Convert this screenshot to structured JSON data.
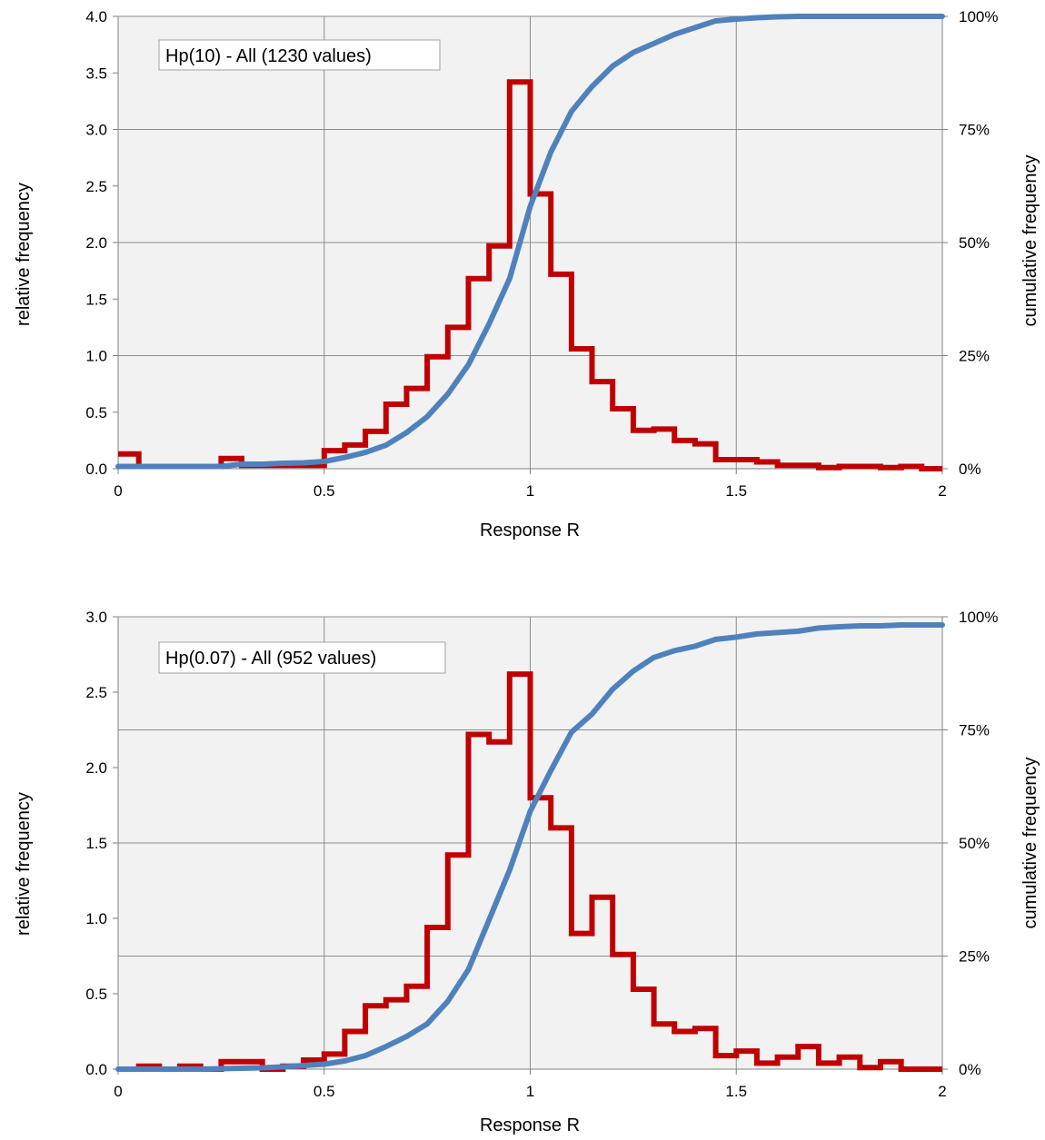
{
  "chart_data": [
    {
      "type": "line",
      "title": "",
      "annotation": "Hp(10) - All (1230 values)",
      "xlabel": "Response R",
      "ylabel": "relative frequency",
      "y2label": "cumulative frequency",
      "xlim": [
        0,
        2
      ],
      "ylim": [
        0,
        4.0
      ],
      "y2lim": [
        0,
        1
      ],
      "xticks": [
        "0",
        "0.5",
        "1",
        "1.5",
        "2"
      ],
      "yticks": [
        "0.0",
        "0.5",
        "1.0",
        "1.5",
        "2.0",
        "2.5",
        "3.0",
        "3.5",
        "4.0"
      ],
      "y2ticks": [
        "0%",
        "25%",
        "50%",
        "75%",
        "100%"
      ],
      "grid": true,
      "series": [
        {
          "type": "step",
          "color": "#c00000",
          "bin_width": 0.05,
          "bin_starts": [
            0,
            0.05,
            0.1,
            0.15,
            0.2,
            0.25,
            0.3,
            0.35,
            0.4,
            0.45,
            0.5,
            0.55,
            0.6,
            0.65,
            0.7,
            0.75,
            0.8,
            0.85,
            0.9,
            0.95,
            1.0,
            1.05,
            1.1,
            1.15,
            1.2,
            1.25,
            1.3,
            1.35,
            1.4,
            1.45,
            1.5,
            1.55,
            1.6,
            1.65,
            1.7,
            1.75,
            1.8,
            1.85,
            1.9,
            1.95
          ],
          "values": [
            0.13,
            0.02,
            0.02,
            0.02,
            0.02,
            0.09,
            0.03,
            0.03,
            0.03,
            0.03,
            0.16,
            0.21,
            0.33,
            0.57,
            0.71,
            0.99,
            1.25,
            1.68,
            1.97,
            3.42,
            2.43,
            1.72,
            1.06,
            0.77,
            0.53,
            0.34,
            0.35,
            0.25,
            0.22,
            0.08,
            0.08,
            0.06,
            0.03,
            0.03,
            0.01,
            0.02,
            0.02,
            0.01,
            0.02,
            0.0
          ]
        },
        {
          "type": "line",
          "axis": "right",
          "color": "#4f81bd",
          "x": [
            0,
            0.05,
            0.1,
            0.15,
            0.2,
            0.25,
            0.3,
            0.35,
            0.4,
            0.45,
            0.5,
            0.55,
            0.6,
            0.65,
            0.7,
            0.75,
            0.8,
            0.85,
            0.9,
            0.95,
            1.0,
            1.05,
            1.1,
            1.15,
            1.2,
            1.25,
            1.3,
            1.35,
            1.4,
            1.45,
            1.5,
            1.55,
            1.6,
            1.65,
            1.7,
            1.75,
            1.8,
            1.85,
            1.9,
            1.95,
            2.0
          ],
          "values": [
            0.005,
            0.005,
            0.005,
            0.005,
            0.005,
            0.005,
            0.01,
            0.01,
            0.012,
            0.013,
            0.016,
            0.025,
            0.036,
            0.052,
            0.08,
            0.115,
            0.165,
            0.23,
            0.32,
            0.42,
            0.58,
            0.7,
            0.79,
            0.845,
            0.89,
            0.92,
            0.94,
            0.96,
            0.975,
            0.99,
            0.994,
            0.997,
            0.999,
            1.0,
            1.0,
            1.0,
            1.0,
            1.0,
            1.0,
            1.0,
            1.0
          ]
        }
      ]
    },
    {
      "type": "line",
      "title": "",
      "annotation": "Hp(0.07) - All (952 values)",
      "xlabel": "Response R",
      "ylabel": "relative frequency",
      "y2label": "cumulative frequency",
      "xlim": [
        0,
        2
      ],
      "ylim": [
        0,
        3.0
      ],
      "y2lim": [
        0,
        1
      ],
      "xticks": [
        "0",
        "0.5",
        "1",
        "1.5",
        "2"
      ],
      "yticks": [
        "0.0",
        "0.5",
        "1.0",
        "1.5",
        "2.0",
        "2.5",
        "3.0"
      ],
      "y2ticks": [
        "0%",
        "25%",
        "50%",
        "75%",
        "100%"
      ],
      "grid": true,
      "series": [
        {
          "type": "step",
          "color": "#c00000",
          "bin_width": 0.05,
          "bin_starts": [
            0,
            0.05,
            0.1,
            0.15,
            0.2,
            0.25,
            0.3,
            0.35,
            0.4,
            0.45,
            0.5,
            0.55,
            0.6,
            0.65,
            0.7,
            0.75,
            0.8,
            0.85,
            0.9,
            0.95,
            1.0,
            1.05,
            1.1,
            1.15,
            1.2,
            1.25,
            1.3,
            1.35,
            1.4,
            1.45,
            1.5,
            1.55,
            1.6,
            1.65,
            1.7,
            1.75,
            1.8,
            1.85,
            1.9,
            1.95
          ],
          "values": [
            0.0,
            0.02,
            0.0,
            0.02,
            0.0,
            0.05,
            0.05,
            0.0,
            0.02,
            0.06,
            0.1,
            0.25,
            0.42,
            0.46,
            0.55,
            0.94,
            1.42,
            2.22,
            2.17,
            2.62,
            1.8,
            1.6,
            0.9,
            1.14,
            0.76,
            0.53,
            0.3,
            0.25,
            0.27,
            0.09,
            0.12,
            0.04,
            0.08,
            0.15,
            0.04,
            0.08,
            0.01,
            0.05,
            0.0,
            0.0
          ]
        },
        {
          "type": "line",
          "axis": "right",
          "color": "#4f81bd",
          "x": [
            0,
            0.05,
            0.1,
            0.15,
            0.2,
            0.25,
            0.3,
            0.35,
            0.4,
            0.45,
            0.5,
            0.55,
            0.6,
            0.65,
            0.7,
            0.75,
            0.8,
            0.85,
            0.9,
            0.95,
            1.0,
            1.05,
            1.1,
            1.15,
            1.2,
            1.25,
            1.3,
            1.35,
            1.4,
            1.45,
            1.5,
            1.55,
            1.6,
            1.65,
            1.7,
            1.75,
            1.8,
            1.85,
            1.9,
            1.95,
            2.0
          ],
          "values": [
            0.0,
            0.0,
            0.0,
            0.0,
            0.0,
            0.001,
            0.002,
            0.003,
            0.005,
            0.008,
            0.011,
            0.018,
            0.03,
            0.05,
            0.072,
            0.1,
            0.15,
            0.22,
            0.33,
            0.44,
            0.57,
            0.66,
            0.745,
            0.785,
            0.84,
            0.88,
            0.91,
            0.925,
            0.935,
            0.95,
            0.955,
            0.962,
            0.965,
            0.968,
            0.975,
            0.978,
            0.98,
            0.98,
            0.982,
            0.982,
            0.982
          ]
        }
      ]
    }
  ]
}
